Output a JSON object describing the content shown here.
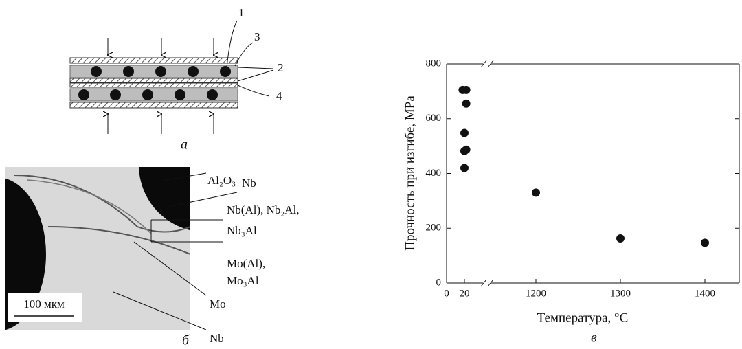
{
  "panel_a": {
    "labels": [
      "1",
      "3",
      "2",
      "4"
    ],
    "caption": "а"
  },
  "panel_b": {
    "labels": [
      "Al₂O₃",
      "Nb",
      "Nb(Al), Nb₂Al,",
      "Nb₃Al",
      "Mo(Al),",
      "Mo₃Al",
      "Mo",
      "Nb"
    ],
    "scale_bar": "100 мкм",
    "caption": "б"
  },
  "chart_data": {
    "type": "scatter",
    "caption": "в",
    "x_label": "Температура, °C",
    "y_label": "Прочность при изгибе, MPa",
    "x": [
      18,
      22,
      22,
      20,
      20,
      22,
      20,
      1200,
      1300,
      1400
    ],
    "values": [
      705,
      705,
      655,
      548,
      482,
      487,
      420,
      330,
      163,
      147
    ],
    "color": "#111111",
    "xlim": [
      0,
      1445
    ],
    "ylim": [
      0,
      800
    ],
    "xticks": [
      0,
      20,
      1200,
      1300,
      1400
    ],
    "yticks": [
      0,
      200,
      400,
      600,
      800
    ]
  }
}
